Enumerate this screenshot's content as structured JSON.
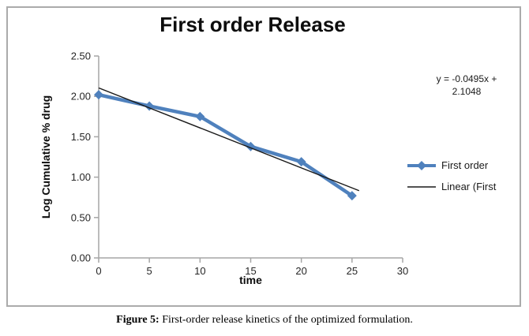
{
  "figure": {
    "caption_label": "Figure 5:",
    "caption_text": " First-order release kinetics of the optimized formulation."
  },
  "colors": {
    "series_blue": "#4F81BD",
    "trendline_black": "#1a1a1a",
    "axis_gray": "#a6a6a6",
    "tick_label": "#262626"
  },
  "chart_data": {
    "type": "line",
    "title": "First order Release",
    "xlabel": "time",
    "ylabel": "Log Cumulative % drug",
    "xlim": [
      0,
      30
    ],
    "ylim": [
      0,
      2.5
    ],
    "x_ticks": [
      "0",
      "5",
      "10",
      "15",
      "20",
      "25",
      "30"
    ],
    "y_ticks": [
      "0.00",
      "0.50",
      "1.00",
      "1.50",
      "2.00",
      "2.50"
    ],
    "grid": false,
    "legend_position": "right",
    "series": [
      {
        "name": "First order",
        "marker": "diamond",
        "color": "#4F81BD",
        "x": [
          0,
          5,
          10,
          15,
          20,
          25
        ],
        "values": [
          2.02,
          1.88,
          1.75,
          1.38,
          1.19,
          0.77
        ]
      },
      {
        "name": "Linear (First",
        "type": "trendline",
        "color": "#1a1a1a",
        "slope": -0.0495,
        "intercept": 2.1048,
        "x_range": [
          0,
          25.7
        ]
      }
    ],
    "annotation": {
      "line1": "y = -0.0495x +",
      "line2": "2.1048"
    }
  }
}
